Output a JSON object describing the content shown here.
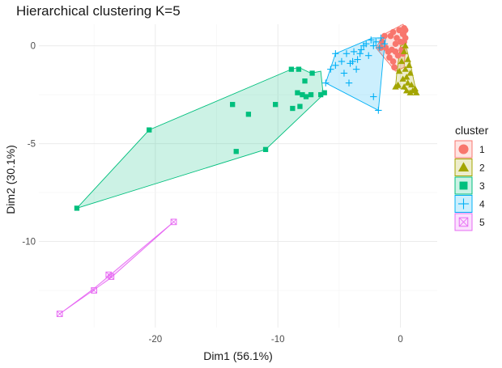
{
  "chart_data": {
    "type": "scatter",
    "title": "Hierarchical clustering K=5",
    "xlabel": "Dim1 (56.1%)",
    "ylabel": "Dim2 (30.1%)",
    "xlim": [
      -29.5,
      3
    ],
    "ylim": [
      -14.4,
      1.1
    ],
    "x_ticks": [
      -20,
      -10,
      0
    ],
    "y_ticks": [
      0,
      -5,
      -10
    ],
    "x_tick_labels": [
      "-20",
      "-10",
      "0"
    ],
    "y_tick_labels": [
      "0",
      "-5",
      "-10"
    ],
    "grid": true,
    "legend": {
      "title": "cluster",
      "position": "right",
      "entries": [
        "1",
        "2",
        "3",
        "4",
        "5"
      ]
    },
    "colors": [
      "#F8766D",
      "#A3A500",
      "#00BF7D",
      "#00B0F6",
      "#E76BF3"
    ],
    "series": [
      {
        "name": "1",
        "marker": "circle",
        "points": [
          [
            -0.6,
            -0.8
          ],
          [
            -1.0,
            -0.3
          ],
          [
            -0.4,
            0.1
          ],
          [
            0.2,
            0.6
          ],
          [
            0.4,
            0.8
          ],
          [
            -0.8,
            0.5
          ],
          [
            -1.5,
            0.2
          ],
          [
            -0.2,
            -0.5
          ],
          [
            0.1,
            -0.2
          ],
          [
            0.3,
            0.2
          ],
          [
            -0.7,
            -0.2
          ],
          [
            -1.2,
            -0.1
          ],
          [
            -0.3,
            0.4
          ],
          [
            -0.6,
            0.7
          ],
          [
            0.2,
            -0.4
          ],
          [
            -0.5,
            -1.1
          ],
          [
            -0.1,
            0.8
          ],
          [
            0.4,
            0.4
          ],
          [
            -0.9,
            -0.6
          ],
          [
            -1.3,
            0.5
          ],
          [
            0.0,
            0.2
          ],
          [
            -0.4,
            -0.3
          ],
          [
            0.3,
            0.9
          ],
          [
            -1.6,
            -0.1
          ]
        ],
        "hull": [
          [
            -2.0,
            -0.1
          ],
          [
            -1.3,
            0.6
          ],
          [
            0.2,
            1.1
          ],
          [
            0.5,
            0.9
          ],
          [
            0.3,
            -1.1
          ],
          [
            -0.4,
            -1.3
          ]
        ]
      },
      {
        "name": "2",
        "marker": "triangle",
        "points": [
          [
            -0.2,
            -2.0
          ],
          [
            0.5,
            -2.3
          ],
          [
            1.0,
            -2.3
          ],
          [
            0.8,
            -1.4
          ],
          [
            0.6,
            -0.7
          ],
          [
            0.3,
            -0.3
          ],
          [
            0.4,
            0.0
          ],
          [
            0.7,
            -1.0
          ],
          [
            1.2,
            -2.2
          ],
          [
            0.2,
            -1.7
          ],
          [
            0.6,
            -1.9
          ],
          [
            0.9,
            -2.0
          ],
          [
            0.4,
            -1.2
          ],
          [
            0.1,
            -0.8
          ],
          [
            0.5,
            -1.6
          ],
          [
            -0.1,
            -1.3
          ],
          [
            0.8,
            -2.4
          ],
          [
            1.3,
            -2.4
          ],
          [
            0.3,
            -2.1
          ],
          [
            -0.4,
            -2.1
          ]
        ],
        "hull": [
          [
            -0.4,
            -2.1
          ],
          [
            1.3,
            -2.4
          ],
          [
            0.8,
            -0.9
          ],
          [
            0.4,
            0.1
          ],
          [
            0.0,
            0.0
          ],
          [
            -0.3,
            -1.4
          ]
        ]
      },
      {
        "name": "3",
        "marker": "square",
        "points": [
          [
            -26.4,
            -8.3
          ],
          [
            -20.5,
            -4.3
          ],
          [
            -13.4,
            -5.4
          ],
          [
            -11.0,
            -5.3
          ],
          [
            -13.7,
            -3.0
          ],
          [
            -12.4,
            -3.5
          ],
          [
            -10.2,
            -3.0
          ],
          [
            -8.8,
            -3.2
          ],
          [
            -8.4,
            -2.4
          ],
          [
            -8.2,
            -3.1
          ],
          [
            -7.7,
            -2.6
          ],
          [
            -7.8,
            -1.8
          ],
          [
            -7.3,
            -2.5
          ],
          [
            -6.5,
            -2.5
          ],
          [
            -8.3,
            -1.2
          ],
          [
            -7.2,
            -1.4
          ],
          [
            -6.2,
            -2.4
          ],
          [
            -8.0,
            -2.5
          ],
          [
            -8.9,
            -1.2
          ]
        ],
        "hull": [
          [
            -26.4,
            -8.3
          ],
          [
            -11.0,
            -5.3
          ],
          [
            -6.3,
            -2.5
          ],
          [
            -6.5,
            -1.3
          ],
          [
            -7.3,
            -1.4
          ],
          [
            -8.3,
            -1.1
          ],
          [
            -8.9,
            -1.2
          ],
          [
            -20.5,
            -4.3
          ]
        ]
      },
      {
        "name": "4",
        "marker": "plus",
        "points": [
          [
            -1.8,
            -3.3
          ],
          [
            -2.2,
            -2.6
          ],
          [
            -6.1,
            -1.9
          ],
          [
            -5.3,
            -0.4
          ],
          [
            -4.8,
            -0.8
          ],
          [
            -4.4,
            -0.4
          ],
          [
            -4.1,
            -0.9
          ],
          [
            -3.8,
            -0.3
          ],
          [
            -3.5,
            -0.7
          ],
          [
            -3.2,
            -0.2
          ],
          [
            -2.8,
            0.1
          ],
          [
            -2.4,
            0.3
          ],
          [
            -2.0,
            0.2
          ],
          [
            -1.7,
            -0.1
          ],
          [
            -1.3,
            0.1
          ],
          [
            -3.0,
            0.0
          ],
          [
            -4.6,
            -1.4
          ],
          [
            -3.6,
            -1.2
          ],
          [
            -2.6,
            -0.5
          ],
          [
            -5.7,
            -1.2
          ],
          [
            -4.2,
            -1.9
          ],
          [
            -3.3,
            -0.4
          ],
          [
            -2.2,
            0.0
          ],
          [
            -1.6,
            0.4
          ],
          [
            -5.3,
            -1.0
          ],
          [
            -3.9,
            -0.8
          ]
        ],
        "hull": [
          [
            -6.1,
            -1.9
          ],
          [
            -1.8,
            -3.3
          ],
          [
            -1.4,
            -0.6
          ],
          [
            -1.2,
            0.4
          ],
          [
            -2.3,
            0.4
          ],
          [
            -5.3,
            -0.4
          ]
        ]
      },
      {
        "name": "5",
        "marker": "square-x",
        "points": [
          [
            -27.8,
            -13.7
          ],
          [
            -25.0,
            -12.5
          ],
          [
            -23.6,
            -11.8
          ],
          [
            -23.8,
            -11.7
          ],
          [
            -18.5,
            -9.0
          ]
        ],
        "hull": [
          [
            -27.8,
            -13.7
          ],
          [
            -23.7,
            -11.9
          ],
          [
            -18.5,
            -9.0
          ],
          [
            -25.0,
            -12.4
          ]
        ]
      }
    ]
  }
}
